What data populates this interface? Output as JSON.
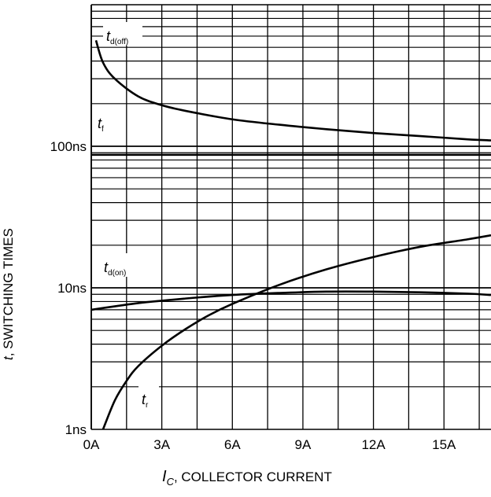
{
  "chart_data": {
    "type": "line",
    "x_unit": "A",
    "y_unit": "s",
    "xlim": [
      0,
      17
    ],
    "ylim": [
      "1ns",
      "1000ns"
    ],
    "y_scale": "log",
    "grid": true,
    "x_ticks": [
      "0A",
      "3A",
      "6A",
      "9A",
      "12A",
      "15A"
    ],
    "y_ticks": [
      "1ns",
      "10ns",
      "100ns"
    ],
    "xlabel": {
      "symbol": "I",
      "sub": "C",
      "text": ", COLLECTOR CURRENT"
    },
    "ylabel": {
      "symbol": "t",
      "text": ", SWITCHING TIMES"
    },
    "series": [
      {
        "name": "td(off)",
        "label_main": "t",
        "label_sub": "d(off)",
        "x": [
          0.2,
          0.5,
          1,
          2,
          3,
          4,
          6,
          8,
          10,
          12,
          14,
          16,
          17
        ],
        "y_ns": [
          560,
          390,
          300,
          225,
          195,
          178,
          155,
          142,
          132,
          124,
          118,
          112,
          110
        ]
      },
      {
        "name": "tf",
        "label_main": "t",
        "label_sub": "f",
        "x": [
          0,
          17
        ],
        "y_ns": [
          87,
          87
        ]
      },
      {
        "name": "td(on)",
        "label_main": "t",
        "label_sub": "d(on)",
        "x": [
          0,
          2,
          4,
          6,
          8,
          10,
          12,
          14,
          16,
          17
        ],
        "y_ns": [
          7.0,
          7.8,
          8.4,
          8.9,
          9.2,
          9.4,
          9.4,
          9.3,
          9.1,
          8.9
        ]
      },
      {
        "name": "tr",
        "label_main": "t",
        "label_sub": "r",
        "x": [
          0.5,
          1,
          1.5,
          2,
          3,
          4,
          5,
          6,
          8,
          10,
          12,
          14,
          16,
          17
        ],
        "y_ns": [
          1.0,
          1.6,
          2.2,
          2.8,
          3.9,
          5.1,
          6.4,
          7.7,
          10.5,
          13.5,
          16.5,
          19.5,
          22,
          23.5
        ]
      }
    ]
  }
}
